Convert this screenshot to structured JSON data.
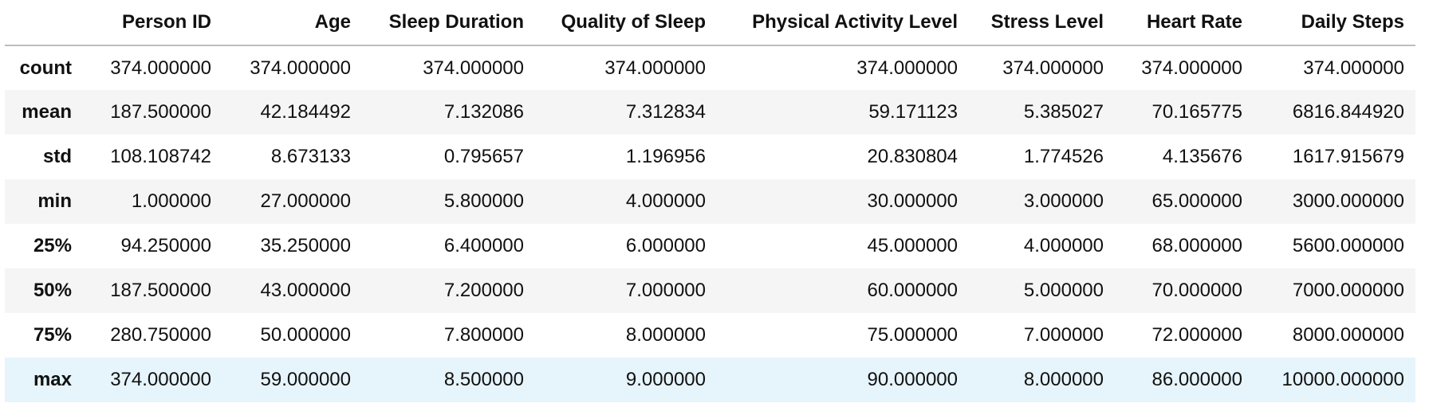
{
  "table": {
    "columns": [
      "Person ID",
      "Age",
      "Sleep Duration",
      "Quality of Sleep",
      "Physical Activity Level",
      "Stress Level",
      "Heart Rate",
      "Daily Steps"
    ],
    "rows": [
      {
        "label": "count",
        "values": [
          "374.000000",
          "374.000000",
          "374.000000",
          "374.000000",
          "374.000000",
          "374.000000",
          "374.000000",
          "374.000000"
        ]
      },
      {
        "label": "mean",
        "values": [
          "187.500000",
          "42.184492",
          "7.132086",
          "7.312834",
          "59.171123",
          "5.385027",
          "70.165775",
          "6816.844920"
        ]
      },
      {
        "label": "std",
        "values": [
          "108.108742",
          "8.673133",
          "0.795657",
          "1.196956",
          "20.830804",
          "1.774526",
          "4.135676",
          "1617.915679"
        ]
      },
      {
        "label": "min",
        "values": [
          "1.000000",
          "27.000000",
          "5.800000",
          "4.000000",
          "30.000000",
          "3.000000",
          "65.000000",
          "3000.000000"
        ]
      },
      {
        "label": "25%",
        "values": [
          "94.250000",
          "35.250000",
          "6.400000",
          "6.000000",
          "45.000000",
          "4.000000",
          "68.000000",
          "5600.000000"
        ]
      },
      {
        "label": "50%",
        "values": [
          "187.500000",
          "43.000000",
          "7.200000",
          "7.000000",
          "60.000000",
          "5.000000",
          "70.000000",
          "7000.000000"
        ]
      },
      {
        "label": "75%",
        "values": [
          "280.750000",
          "50.000000",
          "7.800000",
          "8.000000",
          "75.000000",
          "7.000000",
          "72.000000",
          "8000.000000"
        ]
      },
      {
        "label": "max",
        "values": [
          "374.000000",
          "59.000000",
          "8.500000",
          "9.000000",
          "90.000000",
          "8.000000",
          "86.000000",
          "10000.000000"
        ]
      }
    ],
    "colors": {
      "stripe": "#f5f5f5",
      "hover_row": "#e6f4fb",
      "header_rule": "#bdbdbd"
    }
  }
}
